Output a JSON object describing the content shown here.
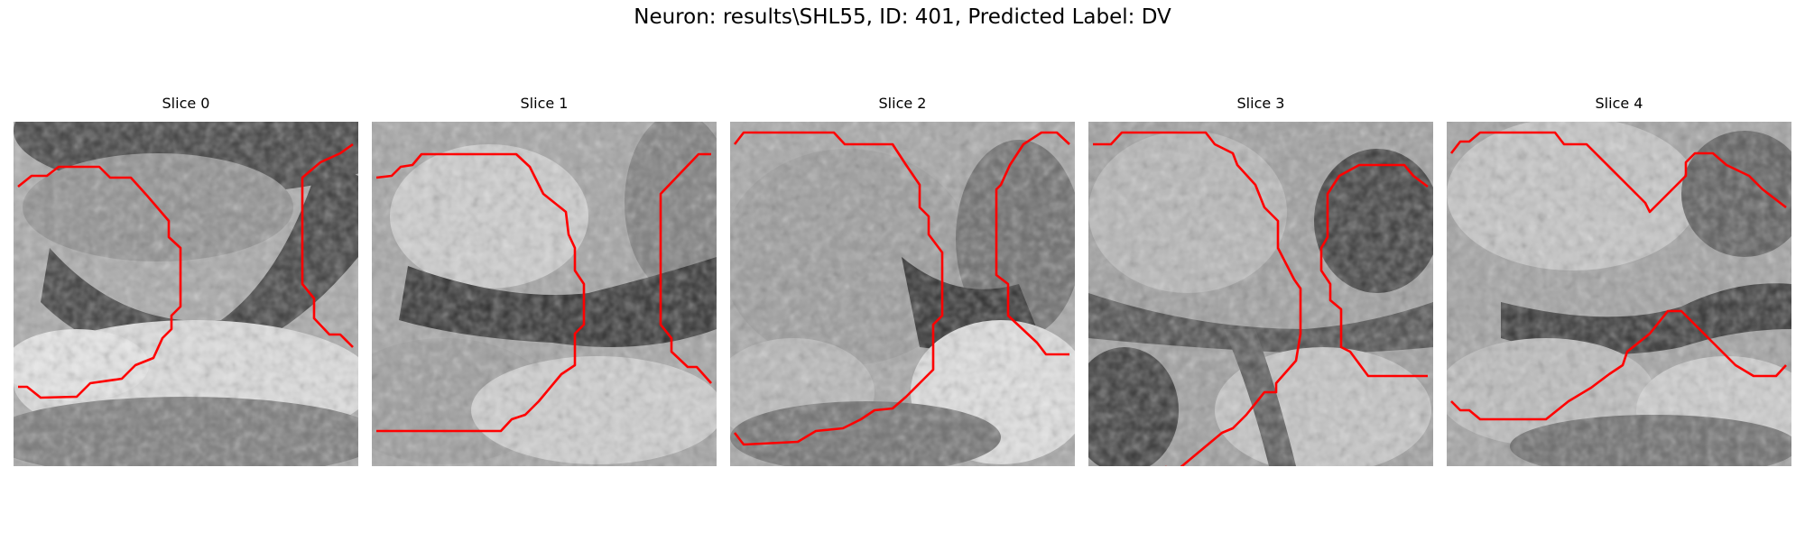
{
  "figure": {
    "title": "Neuron: results\\SHL55, ID: 401, Predicted Label: DV"
  },
  "panels": [
    {
      "title": "Slice 0"
    },
    {
      "title": "Slice 1"
    },
    {
      "title": "Slice 2"
    },
    {
      "title": "Slice 3"
    },
    {
      "title": "Slice 4"
    }
  ],
  "colors": {
    "contour": "#ff0000",
    "background": "#ffffff"
  }
}
